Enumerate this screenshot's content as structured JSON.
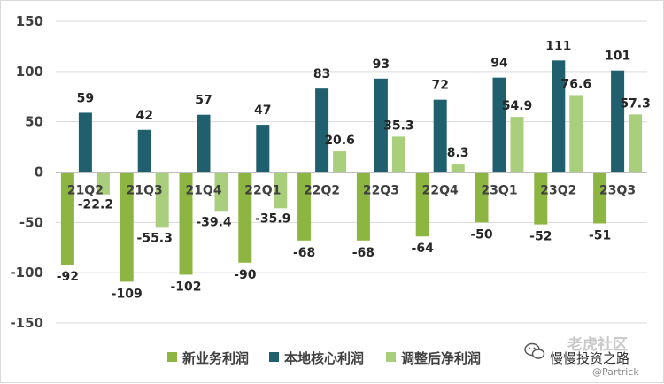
{
  "chart_data": {
    "type": "bar",
    "categories": [
      "21Q2",
      "21Q3",
      "21Q4",
      "22Q1",
      "22Q2",
      "22Q3",
      "22Q4",
      "23Q1",
      "23Q2",
      "23Q3"
    ],
    "series": [
      {
        "name": "新业务利润",
        "color": "#8db541",
        "values": [
          -92,
          -109,
          -102,
          -90,
          -68,
          -68,
          -64,
          -50,
          -52,
          -51
        ]
      },
      {
        "name": "本地核心利润",
        "color": "#1f5f6e",
        "values": [
          59,
          42,
          57,
          47,
          83,
          93,
          72,
          94,
          111,
          101
        ]
      },
      {
        "name": "调整后净利润",
        "color": "#a9cf7d",
        "values": [
          -22.2,
          -55.3,
          -39.4,
          -35.9,
          20.6,
          35.3,
          8.3,
          54.9,
          76.6,
          57.3
        ]
      }
    ],
    "ylim": [
      -150,
      150
    ],
    "yticks": [
      150,
      100,
      50,
      0,
      -50,
      -100,
      -150
    ],
    "grid": true,
    "legend": "bottom",
    "title": "",
    "xlabel": "",
    "ylabel": ""
  },
  "watermark": {
    "faint_text": "老虎社区",
    "handle": "@Partrick",
    "account": "慢慢投资之路"
  }
}
